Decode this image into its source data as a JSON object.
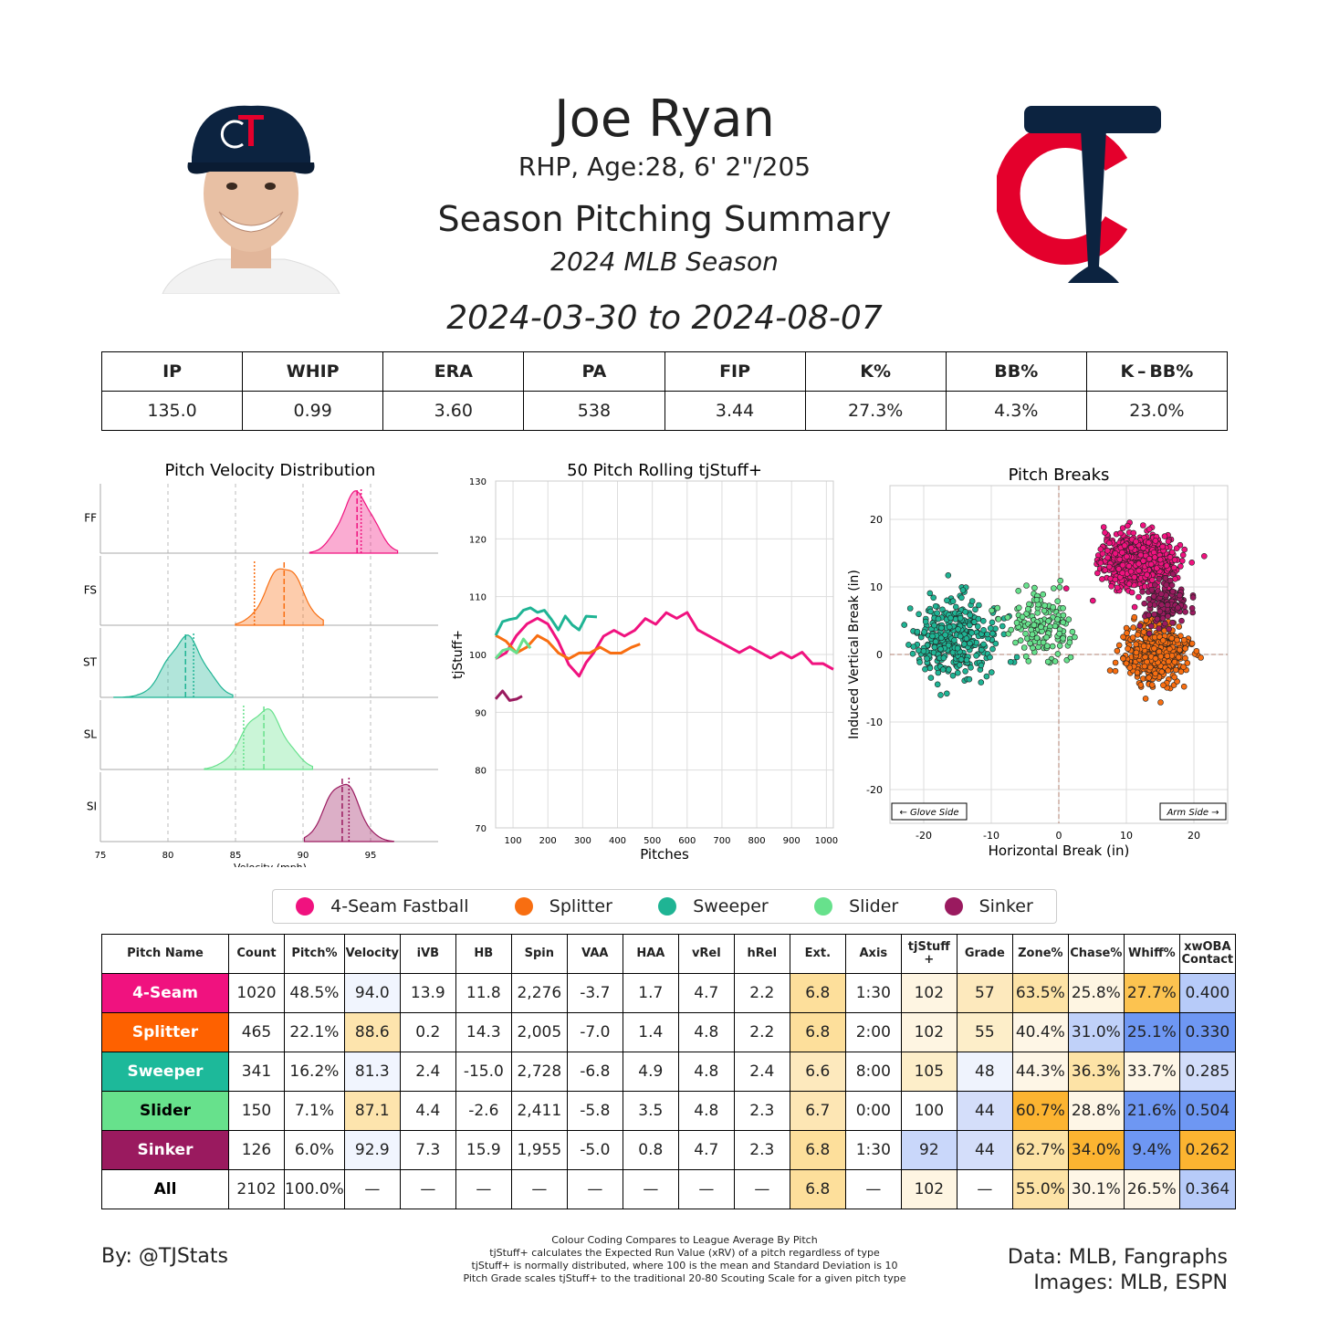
{
  "header": {
    "name": "Joe Ryan",
    "bio": "RHP, Age:28, 6' 2\"/205",
    "summary_title": "Season Pitching Summary",
    "season": "2024 MLB Season",
    "date_range": "2024-03-30 to 2024-08-07"
  },
  "colors": {
    "four_seam": "#f0127f",
    "splitter": "#f86e11",
    "sweeper": "#1fb494",
    "slider": "#67e18c",
    "sinker": "#9a1a5f",
    "team_navy": "#0c2340",
    "team_red": "#e4002c"
  },
  "stats": {
    "headers": [
      "IP",
      "WHIP",
      "ERA",
      "PA",
      "FIP",
      "K%",
      "BB%",
      "K – BB%"
    ],
    "values": [
      "135.0",
      "0.99",
      "3.60",
      "538",
      "3.44",
      "27.3%",
      "4.3%",
      "23.0%"
    ]
  },
  "chart_data": [
    {
      "type": "area",
      "title": "Pitch Velocity Distribution",
      "xlabel": "Velocity (mph)",
      "xlim": [
        75,
        100
      ],
      "xticks": [
        75,
        80,
        85,
        90,
        95
      ],
      "series": [
        {
          "name": "FF",
          "mean": 94.0,
          "sd": 1.2,
          "min": 90.5,
          "max": 97.0,
          "league_avg": 94.3
        },
        {
          "name": "FS",
          "mean": 88.6,
          "sd": 1.3,
          "min": 85.0,
          "max": 91.5,
          "league_avg": 86.4
        },
        {
          "name": "ST",
          "mean": 81.3,
          "sd": 1.4,
          "min": 76.0,
          "max": 84.8,
          "league_avg": 81.9
        },
        {
          "name": "SL",
          "mean": 87.1,
          "sd": 1.5,
          "min": 82.7,
          "max": 90.7,
          "league_avg": 85.6
        },
        {
          "name": "SI",
          "mean": 92.9,
          "sd": 1.2,
          "min": 90.1,
          "max": 96.7,
          "league_avg": 93.4
        }
      ]
    },
    {
      "type": "line",
      "title": "50 Pitch Rolling tjStuff+",
      "xlabel": "Pitches",
      "ylabel": "tjStuff+",
      "xlim": [
        50,
        1020
      ],
      "ylim": [
        70,
        130
      ],
      "xticks": [
        100,
        200,
        300,
        400,
        500,
        600,
        700,
        800,
        900,
        1000
      ],
      "yticks": [
        70,
        80,
        90,
        100,
        110,
        120,
        130
      ],
      "series": [
        {
          "name": "4-Seam Fastball",
          "x": [
            50,
            80,
            110,
            140,
            170,
            200,
            230,
            260,
            290,
            310,
            330,
            360,
            390,
            420,
            450,
            480,
            510,
            540,
            570,
            600,
            630,
            660,
            690,
            720,
            750,
            780,
            810,
            840,
            870,
            900,
            930,
            960,
            990,
            1020
          ],
          "values": [
            100,
            101,
            104,
            106,
            107,
            106,
            103,
            99,
            97,
            98,
            100,
            103,
            104,
            103,
            104,
            106,
            105,
            107,
            106,
            107,
            104,
            103,
            102,
            101,
            100,
            101,
            100,
            99,
            100,
            99,
            100,
            98,
            98,
            97
          ]
        },
        {
          "name": "Splitter",
          "x": [
            50,
            80,
            110,
            140,
            170,
            200,
            230,
            260,
            290,
            320,
            350,
            380,
            410,
            440,
            465
          ],
          "values": [
            104,
            103,
            101,
            102,
            104,
            103,
            101,
            100,
            101,
            101,
            102,
            101,
            101,
            102,
            102
          ]
        },
        {
          "name": "Sweeper",
          "x": [
            50,
            70,
            90,
            110,
            130,
            150,
            170,
            190,
            210,
            230,
            250,
            270,
            290,
            310,
            341
          ],
          "values": [
            104,
            105,
            106,
            107,
            107,
            108,
            108,
            107,
            106,
            105,
            106,
            105,
            105,
            106,
            106
          ]
        },
        {
          "name": "Slider",
          "x": [
            50,
            70,
            90,
            110,
            130,
            150
          ],
          "values": [
            100,
            100,
            101,
            101,
            102,
            101
          ]
        },
        {
          "name": "Sinker",
          "x": [
            50,
            70,
            90,
            110,
            126
          ],
          "values": [
            93,
            93,
            92,
            93,
            92
          ]
        }
      ]
    },
    {
      "type": "scatter",
      "title": "Pitch Breaks",
      "xlabel": "Horizontal Break (in)",
      "ylabel": "Induced Vertical Break (in)",
      "xlim": [
        -25,
        25
      ],
      "ylim": [
        -25,
        25
      ],
      "xticks": [
        -20,
        -10,
        0,
        10,
        20
      ],
      "yticks": [
        -20,
        -10,
        0,
        10,
        20
      ],
      "annotations": [
        "← Glove Side",
        "Arm Side →"
      ],
      "series": [
        {
          "name": "4-Seam Fastball",
          "count": 1020,
          "hb_mean": 11.8,
          "hb_sd": 2.5,
          "ivb_mean": 13.9,
          "ivb_sd": 1.7
        },
        {
          "name": "Splitter",
          "count": 465,
          "hb_mean": 14.3,
          "hb_sd": 2.3,
          "ivb_mean": 0.2,
          "ivb_sd": 2.3
        },
        {
          "name": "Sweeper",
          "count": 341,
          "hb_mean": -15.0,
          "hb_sd": 3.0,
          "ivb_mean": 2.4,
          "ivb_sd": 2.8
        },
        {
          "name": "Slider",
          "count": 150,
          "hb_mean": -2.6,
          "hb_sd": 2.3,
          "ivb_mean": 4.4,
          "ivb_sd": 2.6
        },
        {
          "name": "Sinker",
          "count": 126,
          "hb_mean": 15.9,
          "hb_sd": 1.7,
          "ivb_mean": 7.3,
          "ivb_sd": 1.6
        }
      ]
    }
  ],
  "legend": [
    "4-Seam Fastball",
    "Splitter",
    "Sweeper",
    "Slider",
    "Sinker"
  ],
  "pitch_table": {
    "headers": [
      "Pitch Name",
      "Count",
      "Pitch%",
      "Velocity",
      "iVB",
      "HB",
      "Spin",
      "VAA",
      "HAA",
      "vRel",
      "hRel",
      "Ext.",
      "Axis",
      "tjStuff +",
      "Grade",
      "Zone%",
      "Chase%",
      "Whiff%",
      "xwOBA Contact"
    ],
    "rows": [
      {
        "name": "4-Seam",
        "bg": "#f0127f",
        "fg": "#ffffff",
        "cells": [
          "1020",
          "48.5%",
          "94.0",
          "13.9",
          "11.8",
          "2,276",
          "-3.7",
          "1.7",
          "4.7",
          "2.2",
          "6.8",
          "1:30",
          "102",
          "57",
          "63.5%",
          "25.8%",
          "27.7%",
          "0.400"
        ],
        "fills": [
          "",
          "",
          "#f1f5fe",
          "",
          "",
          "",
          "",
          "",
          "",
          "",
          "#fddf9b",
          "",
          "#fef5e2",
          "#fde9bd",
          "#fde3a6",
          "#fef5e2",
          "#fcc350",
          "#b7cbf9"
        ]
      },
      {
        "name": "Splitter",
        "bg": "#fe6100",
        "fg": "#ffffff",
        "cells": [
          "465",
          "22.1%",
          "88.6",
          "0.2",
          "14.3",
          "2,005",
          "-7.0",
          "1.4",
          "4.8",
          "2.2",
          "6.8",
          "2:00",
          "102",
          "55",
          "40.4%",
          "31.0%",
          "25.1%",
          "0.330"
        ],
        "fills": [
          "",
          "",
          "#fde4ad",
          "",
          "",
          "",
          "",
          "",
          "",
          "",
          "#fddf9b",
          "",
          "#fef5e2",
          "#fdeec9",
          "#fef6e6",
          "#c0d1f9",
          "#6e97f3",
          "#6e97f3"
        ]
      },
      {
        "name": "Sweeper",
        "bg": "#1db99a",
        "fg": "#ffffff",
        "cells": [
          "341",
          "16.2%",
          "81.3",
          "2.4",
          "-15.0",
          "2,728",
          "-6.8",
          "4.9",
          "4.8",
          "2.4",
          "6.6",
          "8:00",
          "105",
          "48",
          "44.3%",
          "36.3%",
          "33.7%",
          "0.285"
        ],
        "fills": [
          "",
          "",
          "#f1f5fe",
          "",
          "",
          "",
          "",
          "",
          "",
          "",
          "#fde9bd",
          "",
          "#fdeec9",
          "#eff3fd",
          "#fef6e6",
          "#fde3a6",
          "#fef6e6",
          "#d2ddfa"
        ]
      },
      {
        "name": "Slider",
        "bg": "#67e18c",
        "fg": "#000000",
        "cells": [
          "150",
          "7.1%",
          "87.1",
          "4.4",
          "-2.6",
          "2,411",
          "-5.8",
          "3.5",
          "4.8",
          "2.3",
          "6.7",
          "0:00",
          "100",
          "44",
          "60.7%",
          "28.8%",
          "21.6%",
          "0.504"
        ],
        "fills": [
          "",
          "",
          "#fde4ad",
          "",
          "",
          "",
          "",
          "",
          "",
          "",
          "#fde6b4",
          "",
          "",
          "#d4defa",
          "#fcb431",
          "#fef6e6",
          "#6e97f3",
          "#6e97f3"
        ]
      },
      {
        "name": "Sinker",
        "bg": "#9a1a5f",
        "fg": "#ffffff",
        "cells": [
          "126",
          "6.0%",
          "92.9",
          "7.3",
          "15.9",
          "1,955",
          "-5.0",
          "0.8",
          "4.7",
          "2.3",
          "6.8",
          "1:30",
          "92",
          "44",
          "62.7%",
          "34.0%",
          "9.4%",
          "0.262"
        ],
        "fills": [
          "",
          "",
          "#f1f5fe",
          "",
          "",
          "",
          "",
          "",
          "",
          "",
          "#fddf9b",
          "",
          "#c9d7fa",
          "#d4defa",
          "#fde3a6",
          "#fcb431",
          "#6e97f3",
          "#fcb431"
        ]
      },
      {
        "name": "All",
        "bg": "#ffffff",
        "fg": "#000000",
        "cells": [
          "2102",
          "100.0%",
          "—",
          "—",
          "—",
          "—",
          "—",
          "—",
          "—",
          "—",
          "6.8",
          "—",
          "102",
          "—",
          "55.0%",
          "30.1%",
          "26.5%",
          "0.364"
        ],
        "fills": [
          "",
          "",
          "",
          "",
          "",
          "",
          "",
          "",
          "",
          "",
          "#fddf9b",
          "",
          "#fef5e2",
          "",
          "#fde3a6",
          "#fef6e6",
          "#fef6e6",
          "#b7cbf9"
        ]
      }
    ]
  },
  "footer": {
    "credit": "By: @TJStats",
    "notes": [
      "Colour Coding Compares to League Average By Pitch",
      "tjStuff+ calculates the Expected Run Value (xRV) of a pitch regardless of type",
      "tjStuff+ is normally distributed, where 100 is the mean and Standard Deviation is 10",
      "Pitch Grade scales tjStuff+ to the traditional 20-80 Scouting Scale for a given pitch type"
    ],
    "sources": [
      "Data: MLB, Fangraphs",
      "Images: MLB, ESPN"
    ]
  }
}
